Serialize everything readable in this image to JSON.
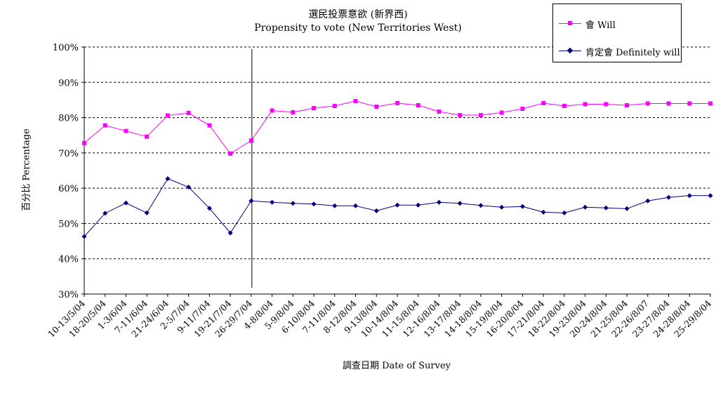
{
  "chart_data": {
    "type": "line",
    "title": "選民投票意欲 (新界西)",
    "subtitle": "Propensity to vote (New Territories West)",
    "xlabel": "調查日期 Date of Survey",
    "ylabel": "百分比 Percentage",
    "ylim": [
      30,
      100
    ],
    "yticks": [
      "30%",
      "40%",
      "50%",
      "60%",
      "70%",
      "80%",
      "90%",
      "100%"
    ],
    "grid": true,
    "legend_position": "top-right",
    "categories": [
      "10-13/5/04",
      "18-20/5/04",
      "1-3/6/04",
      "7-11/6/04",
      "21-24/6/04",
      "2-5/7/04",
      "9-11/7/04",
      "19-21/7/04",
      "26-29/7/04",
      "4-8/8/04",
      "5-9/8/04",
      "6-10/8/04",
      "7-11/8/04",
      "8-12/8/04",
      "9-13/8/04",
      "10-14/8/04",
      "11-15/8/04",
      "12-16/8/04",
      "13-17/8/04",
      "14-18/8/04",
      "15-19/8/04",
      "16-20/8/04",
      "17-21/8/04",
      "18-22/8/04",
      "19-23/8/04",
      "20-24/8/04",
      "21-25/8/04",
      "22-26/8/07",
      "23-27/8/04",
      "24-28/8/04",
      "25-29/8/04"
    ],
    "series": [
      {
        "name": "會 Will",
        "color": "#ff00ff",
        "marker": "square",
        "values": [
          72.8,
          77.8,
          76.2,
          74.6,
          80.6,
          81.3,
          77.8,
          69.8,
          73.5,
          82.0,
          81.5,
          82.7,
          83.3,
          84.7,
          83.1,
          84.1,
          83.5,
          81.7,
          80.7,
          80.7,
          81.4,
          82.5,
          84.1,
          83.3,
          83.8,
          83.8,
          83.5,
          84.0,
          84.0,
          84.0,
          84.0
        ]
      },
      {
        "name": "肯定會 Definitely will",
        "color": "#000080",
        "marker": "diamond",
        "values": [
          46.3,
          52.9,
          55.8,
          53.0,
          62.7,
          60.3,
          54.3,
          47.3,
          56.4,
          56.0,
          55.7,
          55.5,
          55.0,
          55.0,
          53.6,
          55.2,
          55.2,
          56.0,
          55.7,
          55.1,
          54.6,
          54.8,
          53.2,
          53.0,
          54.6,
          54.4,
          54.2,
          56.4,
          57.4,
          57.9,
          57.9
        ]
      }
    ],
    "vertical_marker_after_category": "26-29/7/04"
  }
}
